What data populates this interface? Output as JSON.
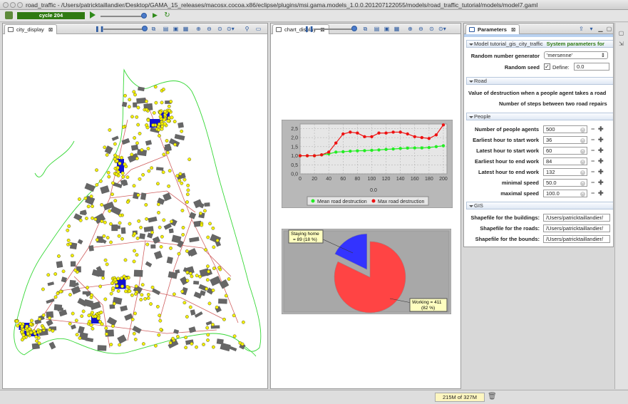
{
  "window": {
    "title": "road_traffic - /Users/patricktaillandier/Desktop/GAMA_15_releases/macosx.cocoa.x86/eclipse/plugins/msi.gama.models_1.0.0.201207122055/models/road_traffic_tutorial/models/model7.gaml"
  },
  "toolbar": {
    "cycle_label": "cycle 204"
  },
  "city_panel": {
    "tab_label": "city_display"
  },
  "chart_panel": {
    "tab_label": "chart_display"
  },
  "params_panel": {
    "tab_label": "Parameters",
    "model_header": "Model tutorial_gis_city_traffic",
    "model_header_note": "System parameters for",
    "rng_label": "Random number generator",
    "rng_value": "'mersenne'",
    "seed_label": "Random seed",
    "define_label": "Define:",
    "seed_value": "0.0",
    "road_section": "Road",
    "road_param1": "Value of destruction when a people agent takes a road",
    "road_param2": "Number of steps between two road repairs",
    "people_section": "People",
    "people_params": [
      {
        "label": "Number of people agents",
        "value": "500"
      },
      {
        "label": "Earliest hour to start work",
        "value": "36"
      },
      {
        "label": "Latest hour to start work",
        "value": "60"
      },
      {
        "label": "Earliest hour to end work",
        "value": "84"
      },
      {
        "label": "Latest hour to end work",
        "value": "132"
      },
      {
        "label": "minimal speed",
        "value": "50.0"
      },
      {
        "label": "maximal speed",
        "value": "100.0"
      }
    ],
    "gis_section": "GIS",
    "gis_params": [
      {
        "label": "Shapefile for the buildings:",
        "value": "/Users/patricktaillandier/"
      },
      {
        "label": "Shapefile for the roads:",
        "value": "/Users/patricktaillandier/"
      },
      {
        "label": "Shapefile for the bounds:",
        "value": "/Users/patricktaillandier/"
      }
    ]
  },
  "status": {
    "memory": "215M of 327M"
  },
  "colors": {
    "cycle_bg": "#2f7a12",
    "road": "#d06060",
    "people": "#f4f000",
    "building": "#666666",
    "mean_series": "#22ee22",
    "max_series": "#ee1111",
    "pie_staying": "#3333ff",
    "pie_working": "#ff4444"
  },
  "chart_data": [
    {
      "type": "line",
      "x": [
        0,
        10,
        20,
        30,
        40,
        50,
        60,
        70,
        80,
        90,
        100,
        110,
        120,
        130,
        140,
        150,
        160,
        170,
        180,
        190,
        200
      ],
      "series": [
        {
          "name": "Mean road destruction",
          "values": [
            1.0,
            1.0,
            1.0,
            1.05,
            1.1,
            1.2,
            1.22,
            1.25,
            1.27,
            1.28,
            1.3,
            1.32,
            1.35,
            1.37,
            1.4,
            1.42,
            1.43,
            1.43,
            1.45,
            1.5,
            1.55
          ]
        },
        {
          "name": "Max road destruction",
          "values": [
            1.0,
            1.0,
            1.0,
            1.05,
            1.2,
            1.7,
            2.2,
            2.3,
            2.25,
            2.05,
            2.05,
            2.25,
            2.25,
            2.3,
            2.3,
            2.2,
            2.05,
            2.0,
            1.95,
            2.15,
            2.7
          ]
        }
      ],
      "xticks": [
        "0",
        "20",
        "40",
        "60",
        "80",
        "100",
        "120",
        "140",
        "160",
        "180",
        "200"
      ],
      "yticks": [
        "0,0",
        "0,5",
        "1,0",
        "1,5",
        "2,0",
        "2,5"
      ],
      "xlabel": "0.0",
      "ylabel": "",
      "ylim": [
        0,
        2.75
      ],
      "xlim": [
        0,
        205
      ],
      "grid": true,
      "legend": "bottom"
    },
    {
      "type": "pie",
      "slices": [
        {
          "label": "Staying home",
          "value": 89,
          "text": "Staying home\n= 89 (18 %)"
        },
        {
          "label": "Working",
          "value": 411,
          "text": "Working = 411\n(82 %)"
        }
      ]
    }
  ]
}
